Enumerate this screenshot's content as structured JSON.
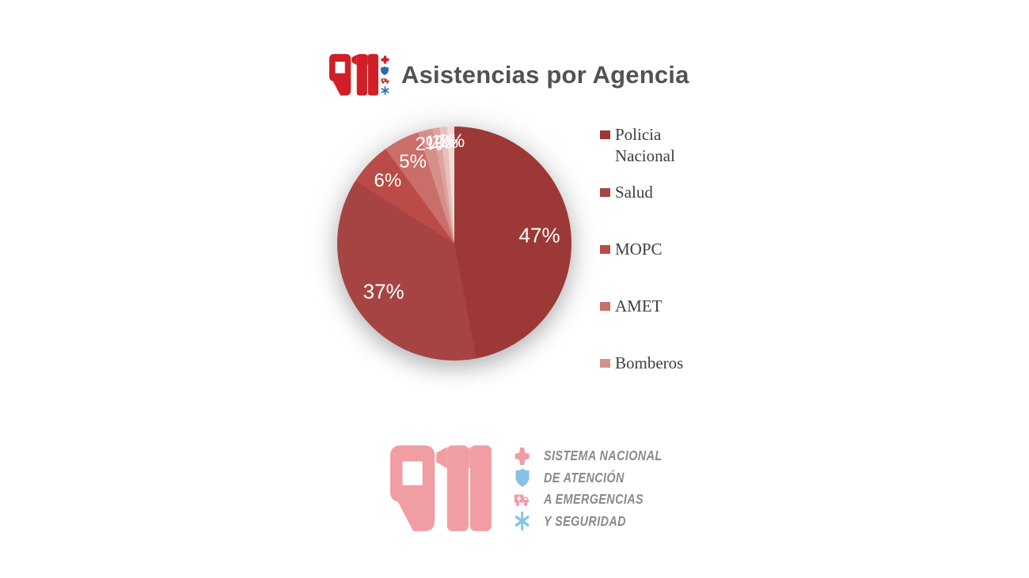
{
  "header_logo": {
    "text": "911",
    "icons": [
      "maltese-cross-icon",
      "shield-icon",
      "ambulance-icon",
      "star-of-life-icon"
    ]
  },
  "chart_data": {
    "type": "pie",
    "title": "Asistencias por Agencia",
    "legend_position": "right",
    "total": 100,
    "slices": [
      {
        "name": "Policia Nacional",
        "value": 47,
        "label": "47%",
        "color": "#9c3937",
        "in_legend": true
      },
      {
        "name": "Salud",
        "value": 37,
        "label": "37%",
        "color": "#a54442",
        "in_legend": true
      },
      {
        "name": "MOPC",
        "value": 6,
        "label": "6%",
        "color": "#bb4b47",
        "in_legend": true
      },
      {
        "name": "AMET",
        "value": 5,
        "label": "5%",
        "color": "#c96e68",
        "in_legend": true
      },
      {
        "name": "Bomberos",
        "value": 2,
        "label": "2%",
        "color": "#d5908b",
        "in_legend": true
      },
      {
        "name": "",
        "value": 1,
        "label": "1%",
        "color": "#dda49f",
        "in_legend": false
      },
      {
        "name": "",
        "value": 1,
        "label": "1%",
        "color": "#e7c0bd",
        "in_legend": false
      },
      {
        "name": "",
        "value": 1,
        "label": "1%",
        "color": "#f1dcdb",
        "in_legend": false
      }
    ]
  },
  "footer_logo": {
    "text": "911",
    "tagline_lines": [
      "SISTEMA NACIONAL",
      "DE ATENCIÓN",
      "A EMERGENCIAS",
      "Y SEGURIDAD"
    ],
    "icons": [
      "maltese-cross-icon",
      "shield-icon",
      "ambulance-icon",
      "star-of-life-icon"
    ]
  },
  "colors": {
    "header_logo_red": "#d01f26",
    "header_logo_blue": "#2a6bb8",
    "footer_pink": "#f09da3",
    "footer_blue": "#85c3e4",
    "title_gray": "#515256",
    "legend_text": "#3e3e40",
    "tagline_gray": "#8a8a8c"
  }
}
